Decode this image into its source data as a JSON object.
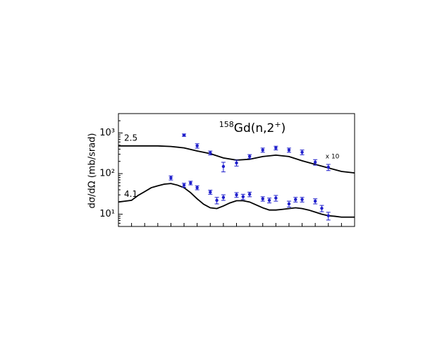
{
  "chart_data": {
    "type": "scatter",
    "title": [
      "158",
      "Gd(n,2",
      "+",
      ")"
    ],
    "y_label": "dσ/dΩ (mb/srad)",
    "log_y": true,
    "xlim": [
      0,
      180
    ],
    "xticks": [
      0,
      10,
      20,
      30,
      40,
      50,
      60,
      70,
      80,
      90,
      100,
      110,
      120,
      130,
      140,
      150,
      160,
      170,
      180
    ],
    "ylim": [
      5,
      3000
    ],
    "yticks": [
      {
        "value": 10,
        "label": "10¹"
      },
      {
        "value": 100,
        "label": "10²"
      },
      {
        "value": 1000,
        "label": "10³"
      }
    ],
    "point_color": "#1f1fcc",
    "curve_color": "#000000",
    "datasets": [
      {
        "label": "2.5",
        "note": "x 10",
        "x": [
          50,
          60,
          70,
          80,
          90,
          100,
          110,
          120,
          130,
          140,
          150,
          160
        ],
        "values": [
          885,
          483,
          323,
          150,
          183,
          264,
          380,
          428,
          380,
          336,
          191,
          144
        ],
        "errors": [
          60,
          60,
          35,
          40,
          30,
          30,
          45,
          45,
          45,
          45,
          30,
          25
        ],
        "curve_x": [
          0,
          10,
          20,
          30,
          40,
          50,
          60,
          70,
          80,
          90,
          100,
          110,
          120,
          130,
          140,
          150,
          160,
          170,
          180
        ],
        "curve": [
          480,
          480,
          480,
          480,
          465,
          430,
          360,
          310,
          243,
          215,
          225,
          263,
          285,
          263,
          207,
          169,
          138,
          113,
          104
        ]
      },
      {
        "label": "4.1",
        "x": [
          40,
          50,
          55,
          60,
          70,
          75,
          80,
          90,
          95,
          100,
          110,
          115,
          120,
          130,
          135,
          140,
          150,
          155,
          160
        ],
        "values": [
          78.5,
          52,
          59,
          45,
          35,
          22,
          26,
          30,
          27,
          31,
          24,
          22,
          25,
          18,
          23,
          23,
          21,
          14,
          9.2
        ],
        "errors": [
          9,
          6,
          6,
          5,
          4,
          4,
          4,
          4,
          4,
          4,
          3,
          3,
          4,
          3,
          3,
          3,
          3,
          2.5,
          2
        ],
        "curve_x": [
          0,
          5,
          10,
          15,
          20,
          25,
          30,
          35,
          40,
          45,
          50,
          55,
          60,
          65,
          70,
          75,
          80,
          85,
          90,
          95,
          100,
          105,
          110,
          115,
          120,
          125,
          130,
          135,
          140,
          145,
          150,
          155,
          160,
          165,
          170,
          175,
          180
        ],
        "curve": [
          20,
          21,
          22,
          29,
          36,
          45,
          50,
          55,
          57,
          52,
          45,
          34,
          24,
          17.6,
          14.4,
          13.8,
          16,
          19,
          21.5,
          21.5,
          20,
          17,
          14.4,
          12.7,
          12.7,
          13.2,
          13.8,
          14.4,
          13.8,
          12.7,
          11.3,
          10,
          9.2,
          8.9,
          8.5,
          8.5,
          8.5
        ]
      }
    ]
  }
}
